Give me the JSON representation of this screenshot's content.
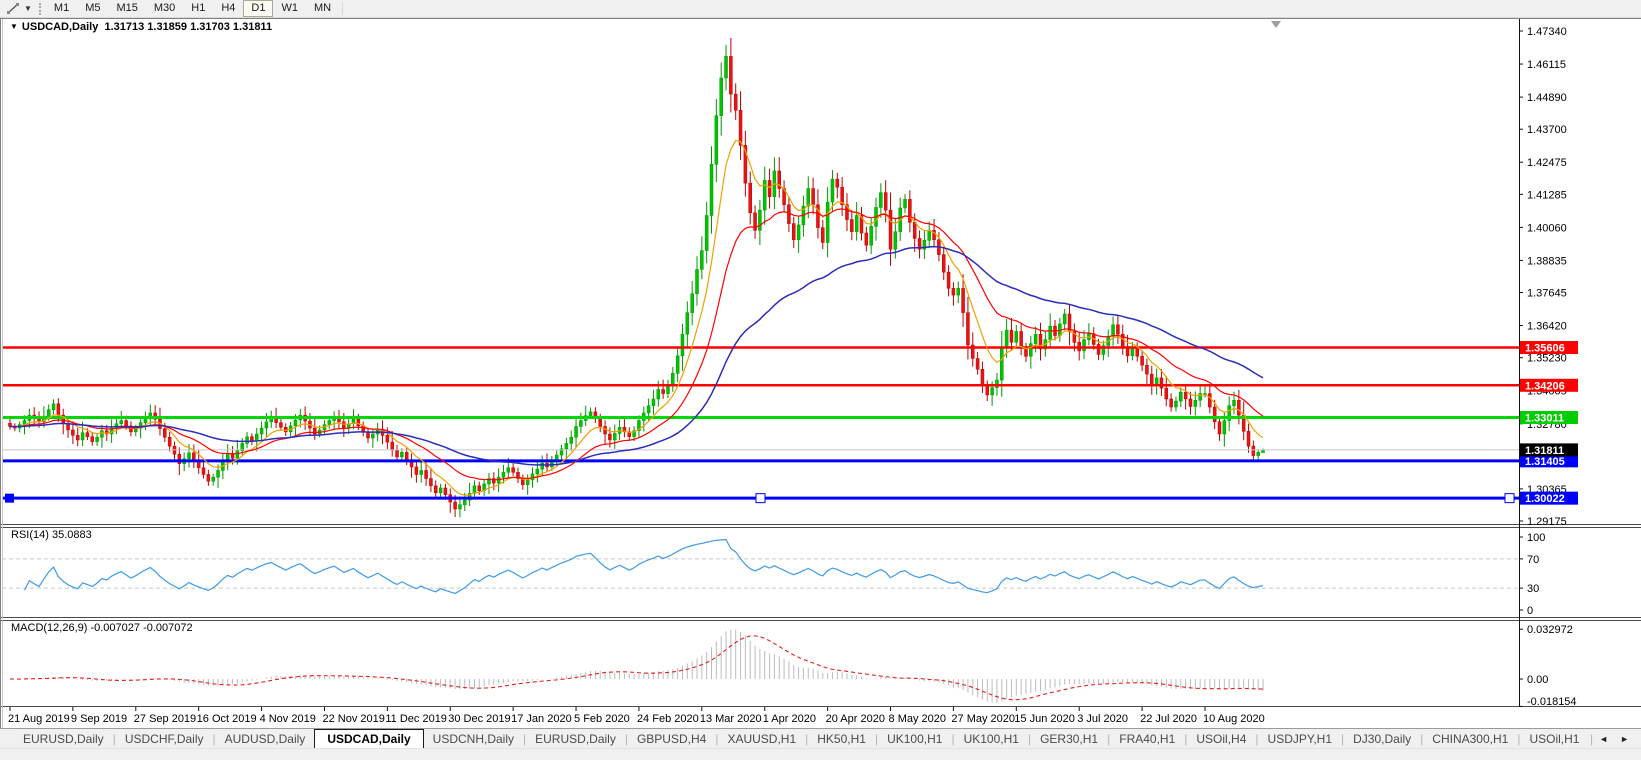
{
  "toolbar": {
    "tool_icon": "line-studies-icon",
    "dropdown_caret": "▼",
    "timeframes": [
      "M1",
      "M5",
      "M15",
      "M30",
      "H1",
      "H4",
      "D1",
      "W1",
      "MN"
    ],
    "active_timeframe": "D1"
  },
  "chart": {
    "menu_caret": "▼",
    "title_symbol": "USDCAD,Daily",
    "title_ohlc": "1.31713 1.31859 1.31703 1.31811"
  },
  "indicators": {
    "rsi_label": "RSI(14) 35.0883",
    "macd_label": "MACD(12,26,9) -0.007027 -0.007072"
  },
  "tabs": {
    "items": [
      "EURUSD,Daily",
      "USDCHF,Daily",
      "AUDUSD,Daily",
      "USDCAD,Daily",
      "USDCNH,Daily",
      "EURUSD,Daily",
      "GBPUSD,H4",
      "XAUUSD,H1",
      "HK50,H1",
      "UK100,H1",
      "UK100,H1",
      "GER30,H1",
      "FRA40,H1",
      "USOil,H4",
      "USDJPY,H1",
      "DJ30,Daily",
      "CHINA300,H1",
      "USOil,H1"
    ],
    "active_index": 3,
    "scroll_left": "◄",
    "scroll_right": "►"
  },
  "chart_data": {
    "type": "candlestick",
    "symbol": "USDCAD",
    "timeframe": "Daily",
    "price_axis_ticks": [
      1.4734,
      1.46115,
      1.4489,
      1.437,
      1.42475,
      1.41285,
      1.4006,
      1.38835,
      1.37645,
      1.3642,
      1.3523,
      1.34005,
      1.3278,
      1.3159,
      1.30365,
      1.29175
    ],
    "hlines": [
      {
        "value": 1.35606,
        "label": "1.35606",
        "color": "#FF0000",
        "width": 2.5,
        "selected": false
      },
      {
        "value": 1.34206,
        "label": "1.34206",
        "color": "#FF0000",
        "width": 2.5,
        "selected": false
      },
      {
        "value": 1.33011,
        "label": "1.33011",
        "color": "#00D800",
        "width": 3,
        "selected": false
      },
      {
        "value": 1.31405,
        "label": "1.31405",
        "color": "#0000FF",
        "width": 3,
        "selected": false
      },
      {
        "value": 1.30022,
        "label": "1.30022",
        "color": "#0000FF",
        "width": 3,
        "selected": true
      }
    ],
    "current_price": {
      "value": 1.31811,
      "label": "1.31811",
      "line_color": "#C8C8C8",
      "tag_bg": "#000000"
    },
    "dates": [
      "21 Aug 2019",
      "9 Sep 2019",
      "27 Sep 2019",
      "16 Oct 2019",
      "4 Nov 2019",
      "22 Nov 2019",
      "11 Dec 2019",
      "30 Dec 2019",
      "17 Jan 2020",
      "5 Feb 2020",
      "24 Feb 2020",
      "13 Mar 2020",
      "1 Apr 2020",
      "20 Apr 2020",
      "8 May 2020",
      "27 May 2020",
      "15 Jun 2020",
      "3 Jul 2020",
      "22 Jul 2020",
      "10 Aug 2020"
    ],
    "bars_per_label": 13,
    "first_open": 1.328,
    "wick_pattern": [
      0.0012,
      0.0026,
      0.0008,
      0.0032,
      0.0018,
      0.001,
      0.0022,
      0.0015
    ],
    "closes": [
      1.3268,
      1.3262,
      1.3275,
      1.329,
      1.331,
      1.3298,
      1.3285,
      1.3305,
      1.333,
      1.3352,
      1.331,
      1.328,
      1.3255,
      1.3235,
      1.3218,
      1.3245,
      1.323,
      1.3212,
      1.3228,
      1.3252,
      1.324,
      1.3262,
      1.3278,
      1.329,
      1.327,
      1.3248,
      1.3262,
      1.3282,
      1.33,
      1.3318,
      1.3295,
      1.326,
      1.3228,
      1.3195,
      1.3165,
      1.313,
      1.3148,
      1.317,
      1.314,
      1.3115,
      1.309,
      1.3065,
      1.308,
      1.3105,
      1.314,
      1.3168,
      1.315,
      1.3178,
      1.3205,
      1.323,
      1.3215,
      1.324,
      1.3262,
      1.3285,
      1.33,
      1.3282,
      1.3265,
      1.3248,
      1.327,
      1.3292,
      1.331,
      1.3288,
      1.3262,
      1.324,
      1.3255,
      1.3275,
      1.329,
      1.3305,
      1.3285,
      1.3262,
      1.3278,
      1.3295,
      1.327,
      1.3248,
      1.3225,
      1.324,
      1.3258,
      1.3235,
      1.321,
      1.318,
      1.3155,
      1.3172,
      1.3145,
      1.3118,
      1.309,
      1.3105,
      1.3075,
      1.3048,
      1.3022,
      1.304,
      1.3015,
      1.2988,
      1.2962,
      1.2978,
      1.2995,
      1.302,
      1.3048,
      1.303,
      1.3055,
      1.3075,
      1.3058,
      1.308,
      1.3098,
      1.3115,
      1.3098,
      1.3075,
      1.3052,
      1.307,
      1.3092,
      1.311,
      1.3132,
      1.3118,
      1.314,
      1.3162,
      1.3185,
      1.3205,
      1.3228,
      1.3268,
      1.329,
      1.3308,
      1.3322,
      1.3298,
      1.3268,
      1.324,
      1.3218,
      1.3242,
      1.3265,
      1.3248,
      1.323,
      1.3252,
      1.329,
      1.3318,
      1.3345,
      1.337,
      1.3405,
      1.339,
      1.342,
      1.3465,
      1.353,
      1.361,
      1.369,
      1.376,
      1.385,
      1.392,
      1.405,
      1.424,
      1.442,
      1.456,
      1.464,
      1.45,
      1.444,
      1.431,
      1.417,
      1.406,
      1.3995,
      1.407,
      1.418,
      1.412,
      1.4215,
      1.415,
      1.409,
      1.402,
      1.396,
      1.4015,
      1.4085,
      1.415,
      1.409,
      1.4005,
      1.395,
      1.41,
      1.4185,
      1.4155,
      1.409,
      1.4035,
      1.399,
      1.405,
      1.3985,
      1.394,
      1.401,
      1.408,
      1.4135,
      1.407,
      1.3925,
      1.399,
      1.4078,
      1.411,
      1.4025,
      1.3965,
      1.3925,
      1.3958,
      1.3995,
      1.396,
      1.3905,
      1.384,
      1.378,
      1.3755,
      1.378,
      1.369,
      1.357,
      1.352,
      1.348,
      1.342,
      1.3385,
      1.3412,
      1.344,
      1.356,
      1.3625,
      1.358,
      1.362,
      1.356,
      1.3528,
      1.3575,
      1.361,
      1.3555,
      1.359,
      1.364,
      1.3605,
      1.3648,
      1.3685,
      1.362,
      1.358,
      1.3548,
      1.359,
      1.3612,
      1.3572,
      1.3535,
      1.3568,
      1.3602,
      1.3645,
      1.361,
      1.3565,
      1.353,
      1.356,
      1.3528,
      1.3495,
      1.3462,
      1.342,
      1.3448,
      1.341,
      1.337,
      1.334,
      1.3362,
      1.3395,
      1.337,
      1.3342,
      1.3365,
      1.339,
      1.339,
      1.334,
      1.3285,
      1.324,
      1.329,
      1.3345,
      1.3365,
      1.331,
      1.325,
      1.3195,
      1.316,
      1.3172,
      1.31811
    ],
    "last_bar": {
      "open": 1.31713,
      "high": 1.31859,
      "low": 1.31703,
      "close": 1.31811
    },
    "candle_up": {
      "fill": "#00C400",
      "stroke": "#009800"
    },
    "candle_down": {
      "fill": "#E81414",
      "stroke": "#C00000"
    },
    "moving_averages": [
      {
        "period": 8,
        "color": "#F0A000",
        "width": 1.2
      },
      {
        "period": 21,
        "color": "#FF0000",
        "width": 1.2
      },
      {
        "period": 55,
        "color": "#2C2CB8",
        "width": 1.5
      }
    ],
    "rsi": {
      "period": 14,
      "color": "#3D9BE9",
      "levels": [
        70,
        30
      ],
      "axis": [
        100,
        70,
        30,
        0
      ],
      "current": 35.0883
    },
    "macd": {
      "fast": 12,
      "slow": 26,
      "signal": 9,
      "hist_color": "#BBBBBB",
      "signal_color": "#E02020",
      "axis": [
        {
          "v": 0.032972,
          "label": "0.032972"
        },
        {
          "v": 0,
          "label": "0.00"
        },
        {
          "v": -0.018154,
          "label": "-0.018154"
        }
      ]
    },
    "shift_marker_color": "#9E9E9E"
  }
}
